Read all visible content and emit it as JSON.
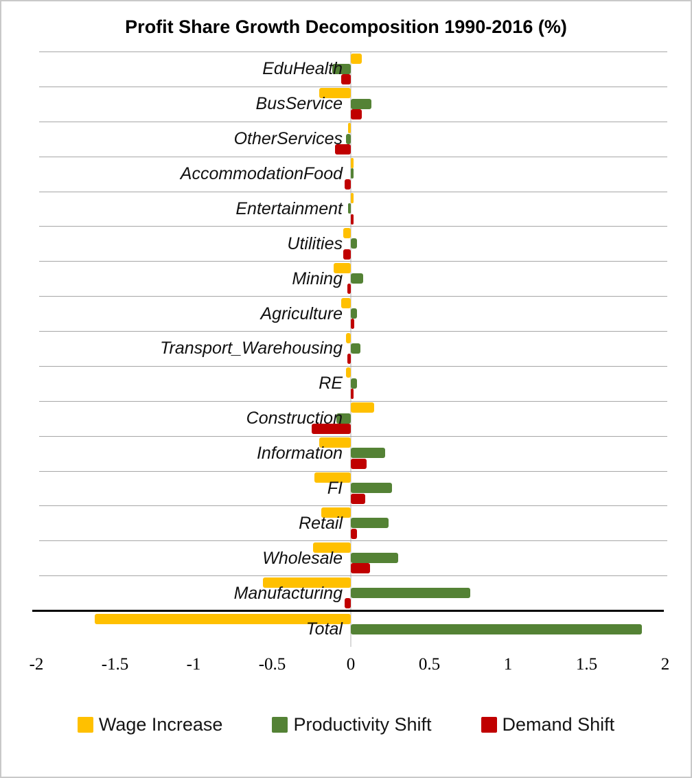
{
  "title": "Profit Share Growth Decomposition 1990-2016 (%)",
  "chart_data": {
    "type": "bar",
    "orientation": "horizontal",
    "title": "Profit Share Growth Decomposition 1990-2016 (%)",
    "categories": [
      "EduHealth",
      "BusService",
      "OtherServices",
      "AccommodationFood",
      "Entertainment",
      "Utilities",
      "Mining",
      "Agriculture",
      "Transport_Warehousing",
      "RE",
      "Construction",
      "Information",
      "FI",
      "Retail",
      "Wholesale",
      "Manufacturing",
      "Total"
    ],
    "series": [
      {
        "name": "Wage Increase",
        "color": "#FFC000",
        "values": [
          0.07,
          -0.2,
          -0.01,
          0.01,
          0.01,
          -0.05,
          -0.11,
          -0.06,
          -0.03,
          -0.03,
          0.15,
          -0.2,
          -0.23,
          -0.19,
          -0.24,
          -0.56,
          -1.63
        ]
      },
      {
        "name": "Productivity Shift",
        "color": "#548235",
        "values": [
          -0.12,
          0.13,
          -0.03,
          0.01,
          -0.01,
          0.04,
          0.08,
          0.04,
          0.06,
          0.04,
          -0.09,
          0.22,
          0.26,
          0.24,
          0.3,
          0.76,
          1.85
        ]
      },
      {
        "name": "Demand Shift",
        "color": "#C00000",
        "values": [
          -0.06,
          0.07,
          -0.1,
          -0.04,
          0.01,
          -0.05,
          -0.02,
          0.02,
          -0.02,
          0.01,
          -0.25,
          0.1,
          0.09,
          0.04,
          0.12,
          -0.04,
          0.0
        ]
      }
    ],
    "xlim": [
      -2,
      2
    ],
    "x_ticks": [
      "-2",
      "-1.5",
      "-1",
      "-0.5",
      "0",
      "0.5",
      "1",
      "1.5",
      "2"
    ],
    "x_tick_values": [
      -2,
      -1.5,
      -1,
      -0.5,
      0,
      0.5,
      1,
      1.5,
      2
    ],
    "grid": "horizontal-category-bands",
    "zero_axis_line": true,
    "separator_before_category": "Total",
    "legend_position": "bottom"
  },
  "legend": {
    "items": [
      {
        "label": "Wage Increase",
        "color": "#FFC000"
      },
      {
        "label": "Productivity Shift",
        "color": "#548235"
      },
      {
        "label": "Demand Shift",
        "color": "#C00000"
      }
    ]
  }
}
